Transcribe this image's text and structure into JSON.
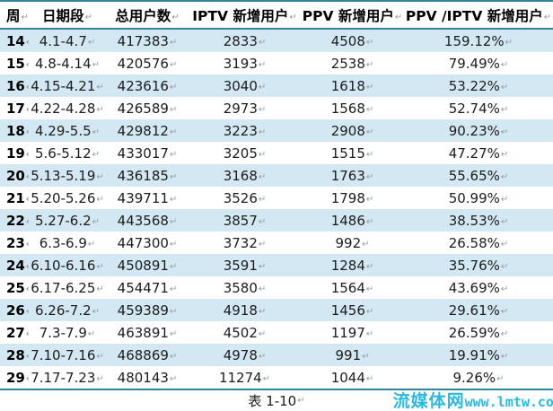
{
  "table": {
    "columns": [
      {
        "key": "week",
        "label": "周"
      },
      {
        "key": "dates",
        "label": "日期段"
      },
      {
        "key": "total",
        "label": "总用户数"
      },
      {
        "key": "iptv",
        "label": "IPTV 新增用户"
      },
      {
        "key": "ppv",
        "label": "PPV 新增用户"
      },
      {
        "key": "ratio",
        "label": "PPV /IPTV 新增用户"
      }
    ],
    "rows": [
      {
        "week": "14",
        "dates": "4.1-4.7",
        "total": "417383",
        "iptv": "2833",
        "ppv": "4508",
        "ratio": "159.12%"
      },
      {
        "week": "15",
        "dates": "4.8-4.14",
        "total": "420576",
        "iptv": "3193",
        "ppv": "2538",
        "ratio": "79.49%"
      },
      {
        "week": "16",
        "dates": "4.15-4.21",
        "total": "423616",
        "iptv": "3040",
        "ppv": "1618",
        "ratio": "53.22%"
      },
      {
        "week": "17",
        "dates": "4.22-4.28",
        "total": "426589",
        "iptv": "2973",
        "ppv": "1568",
        "ratio": "52.74%"
      },
      {
        "week": "18",
        "dates": "4.29-5.5",
        "total": "429812",
        "iptv": "3223",
        "ppv": "2908",
        "ratio": "90.23%"
      },
      {
        "week": "19",
        "dates": "5.6-5.12",
        "total": "433017",
        "iptv": "3205",
        "ppv": "1515",
        "ratio": "47.27%"
      },
      {
        "week": "20",
        "dates": "5.13-5.19",
        "total": "436185",
        "iptv": "3168",
        "ppv": "1763",
        "ratio": "55.65%"
      },
      {
        "week": "21",
        "dates": "5.20-5.26",
        "total": "439711",
        "iptv": "3526",
        "ppv": "1798",
        "ratio": "50.99%"
      },
      {
        "week": "22",
        "dates": "5.27-6.2",
        "total": "443568",
        "iptv": "3857",
        "ppv": "1486",
        "ratio": "38.53%"
      },
      {
        "week": "23",
        "dates": "6.3-6.9",
        "total": "447300",
        "iptv": "3732",
        "ppv": "992",
        "ratio": "26.58%"
      },
      {
        "week": "24",
        "dates": "6.10-6.16",
        "total": "450891",
        "iptv": "3591",
        "ppv": "1284",
        "ratio": "35.76%"
      },
      {
        "week": "25",
        "dates": "6.17-6.25",
        "total": "454471",
        "iptv": "3580",
        "ppv": "1564",
        "ratio": "43.69%"
      },
      {
        "week": "26",
        "dates": "6.26-7.2",
        "total": "459389",
        "iptv": "4918",
        "ppv": "1456",
        "ratio": "29.61%"
      },
      {
        "week": "27",
        "dates": "7.3-7.9",
        "total": "463891",
        "iptv": "4502",
        "ppv": "1197",
        "ratio": "26.59%"
      },
      {
        "week": "28",
        "dates": "7.10-7.16",
        "total": "468869",
        "iptv": "4978",
        "ppv": "991",
        "ratio": "19.91%"
      },
      {
        "week": "29",
        "dates": "7.17-7.23",
        "total": "480143",
        "iptv": "11274",
        "ppv": "1044",
        "ratio": "9.26%"
      }
    ],
    "caption": "表 1-10"
  },
  "marks": {
    "cell_mark": "↵"
  },
  "watermark": {
    "site_name": "流媒体网",
    "site_url": "www.lmtw.com"
  },
  "colors": {
    "stripe": "#d3e8f2",
    "border": "#31849b",
    "watermark": "#2bb9e0"
  }
}
